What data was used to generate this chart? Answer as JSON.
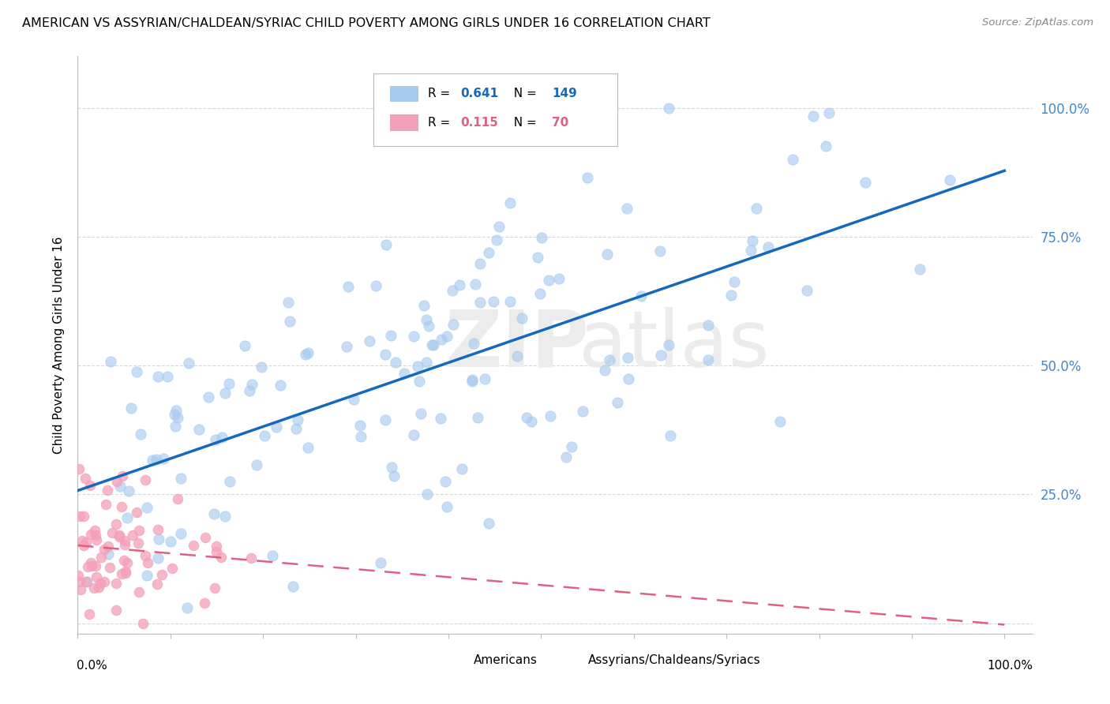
{
  "title": "AMERICAN VS ASSYRIAN/CHALDEAN/SYRIAC CHILD POVERTY AMONG GIRLS UNDER 16 CORRELATION CHART",
  "source": "Source: ZipAtlas.com",
  "ylabel": "Child Poverty Among Girls Under 16",
  "watermark_bold": "ZIP",
  "watermark_light": "atlas",
  "legend_label_1": "Americans",
  "legend_label_2": "Assyrians/Chaldeans/Syriacs",
  "r1": 0.641,
  "n1": 149,
  "r2": 0.115,
  "n2": 70,
  "color_americans": "#A8CCF0",
  "color_assyrians": "#F4A0B8",
  "color_line1": "#1469BD",
  "color_line2": "#E06080",
  "color_ytick": "#4488CC",
  "background_color": "#ffffff",
  "grid_color": "#d8d8d8",
  "seed_americans": 12,
  "seed_assyrians": 77
}
